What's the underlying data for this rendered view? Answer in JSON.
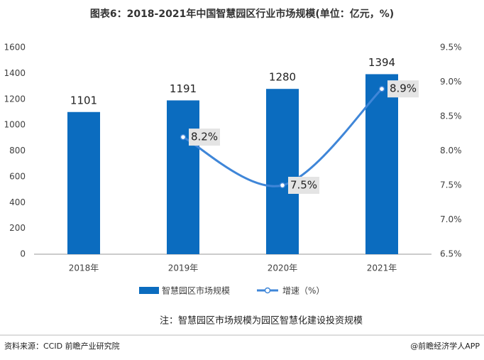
{
  "chart_data": {
    "type": "combo",
    "title": "图表6：2018-2021年中国智慧园区行业市场规模(单位：亿元，%)",
    "categories": [
      "2018年",
      "2019年",
      "2020年",
      "2021年"
    ],
    "series": [
      {
        "name": "智慧园区市场规模",
        "type": "bar",
        "color": "#0b6cbf",
        "values": [
          1101,
          1191,
          1280,
          1394
        ]
      },
      {
        "name": "增速（%）",
        "type": "line",
        "axis": "y2",
        "color": "#3f86d8",
        "values": [
          null,
          8.2,
          7.5,
          8.9
        ],
        "value_labels": [
          null,
          "8.2%",
          "7.5%",
          "8.9%"
        ]
      }
    ],
    "ylim": [
      0,
      1600
    ],
    "yticks": [
      0,
      200,
      400,
      600,
      800,
      1000,
      1200,
      1400,
      1600
    ],
    "y2lim": [
      6.5,
      9.5
    ],
    "y2ticks": [
      {
        "value": 6.5,
        "label": "6.5%"
      },
      {
        "value": 7.0,
        "label": "7.0%"
      },
      {
        "value": 7.5,
        "label": "7.5%"
      },
      {
        "value": 8.0,
        "label": "8.0%"
      },
      {
        "value": 8.5,
        "label": "8.5%"
      },
      {
        "value": 9.0,
        "label": "9.0%"
      },
      {
        "value": 9.5,
        "label": "9.5%"
      }
    ],
    "note": "注：智慧园区市场规模为园区智慧化建设投资规模",
    "source": "资料来源：CCID 前瞻产业研究院",
    "brand": "@前瞻经济学人APP"
  }
}
